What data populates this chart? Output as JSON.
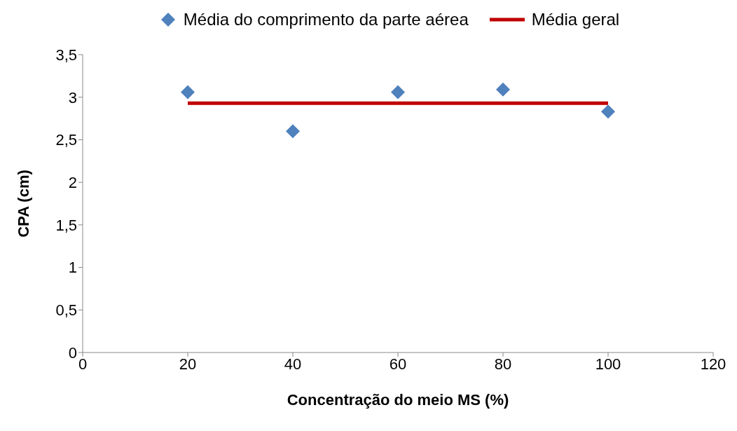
{
  "chart_data": {
    "type": "scatter",
    "xlabel": "Concentração do meio MS (%)",
    "ylabel": "CPA (cm)",
    "xlim": [
      0,
      120
    ],
    "xticks": [
      0,
      20,
      40,
      60,
      80,
      100,
      120
    ],
    "ylim": [
      0,
      3.5
    ],
    "yticks": [
      0,
      {
        "value": 0.5,
        "label": "0,5"
      },
      1,
      {
        "value": 1.5,
        "label": "1,5"
      },
      2,
      {
        "value": 2.5,
        "label": "2,5"
      },
      3,
      {
        "value": 3.5,
        "label": "3,5"
      }
    ],
    "legend": "top",
    "marker": "diamond",
    "series": [
      {
        "name": "Média do comprimento da parte aérea",
        "color": "#4f81bd",
        "x": [
          20,
          40,
          60,
          80,
          100
        ],
        "values": [
          3.06,
          2.6,
          3.06,
          3.09,
          2.83
        ]
      },
      {
        "name": "Média geral",
        "type": "line",
        "color": "#c00000",
        "x": [
          20,
          100
        ],
        "values": [
          2.93,
          2.93
        ],
        "marker": "none",
        "line_style": "solid"
      }
    ]
  }
}
